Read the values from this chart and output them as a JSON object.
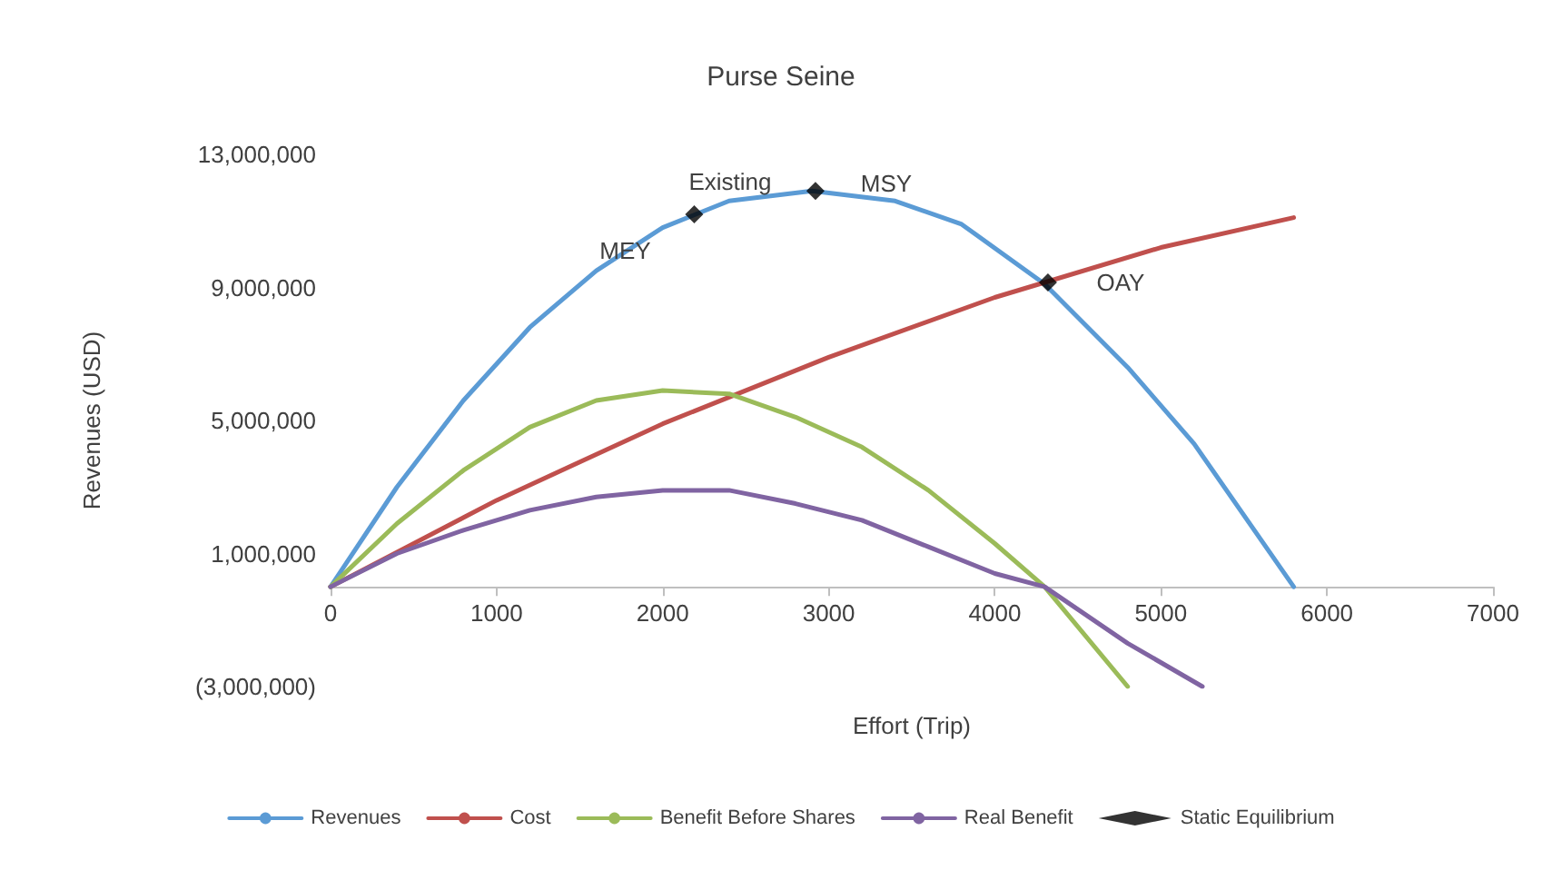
{
  "chart_data": {
    "type": "line",
    "title": "Purse Seine",
    "xlabel": "Effort (Trip)",
    "ylabel": "Revenues (USD)",
    "xlim": [
      0,
      7000
    ],
    "xticks": [
      0,
      1000,
      2000,
      3000,
      4000,
      5000,
      6000,
      7000
    ],
    "ylim": [
      -3000000,
      13000000
    ],
    "yticks": [
      {
        "value": -3000000,
        "label": "(3,000,000)"
      },
      {
        "value": 1000000,
        "label": "1,000,000"
      },
      {
        "value": 5000000,
        "label": "5,000,000"
      },
      {
        "value": 9000000,
        "label": "9,000,000"
      },
      {
        "value": 13000000,
        "label": "13,000,000"
      }
    ],
    "grid": false,
    "legend": "bottom",
    "marker": "none",
    "line_style": "solid",
    "series": [
      {
        "name": "Revenues",
        "color": "#5b9bd5",
        "x": [
          0,
          400,
          800,
          1200,
          1600,
          2000,
          2400,
          2900,
          3400,
          3800,
          4300,
          4800,
          5200,
          5800
        ],
        "values": [
          0,
          3000000,
          5600000,
          7800000,
          9500000,
          10800000,
          11600000,
          11900000,
          11600000,
          10900000,
          9100000,
          6600000,
          4300000,
          0
        ]
      },
      {
        "name": "Cost",
        "color": "#c0504d",
        "x": [
          0,
          1000,
          2000,
          3000,
          4000,
          5000,
          5800
        ],
        "values": [
          0,
          2600000,
          4900000,
          6900000,
          8700000,
          10200000,
          11100000
        ]
      },
      {
        "name": "Benefit Before Shares",
        "color": "#9bbb59",
        "x": [
          0,
          400,
          800,
          1200,
          1600,
          2000,
          2400,
          2800,
          3200,
          3600,
          4000,
          4300,
          4800
        ],
        "values": [
          0,
          1900000,
          3500000,
          4800000,
          5600000,
          5900000,
          5800000,
          5100000,
          4200000,
          2900000,
          1300000,
          0,
          -3000000
        ]
      },
      {
        "name": "Real Benefit",
        "color": "#8064a2",
        "x": [
          0,
          400,
          800,
          1200,
          1600,
          2000,
          2400,
          2800,
          3200,
          3600,
          4000,
          4300,
          4800,
          5250
        ],
        "values": [
          0,
          1000000,
          1700000,
          2300000,
          2700000,
          2900000,
          2900000,
          2500000,
          2000000,
          1200000,
          400000,
          0,
          -1700000,
          -3000000
        ]
      },
      {
        "name": "Static Equilibrium",
        "type": "scatter",
        "marker": "diamond",
        "color": "#000000",
        "x": [
          2190,
          2920,
          4320
        ],
        "values": [
          11200000,
          11900000,
          9150000
        ]
      }
    ],
    "annotations": [
      {
        "text": "MEY",
        "x": 2190,
        "y": 11200000
      },
      {
        "text": "Existing",
        "x": 2920,
        "y": 11900000
      },
      {
        "text": "MSY",
        "x": 2920,
        "y": 11900000
      },
      {
        "text": "OAY",
        "x": 4320,
        "y": 9150000
      }
    ]
  }
}
